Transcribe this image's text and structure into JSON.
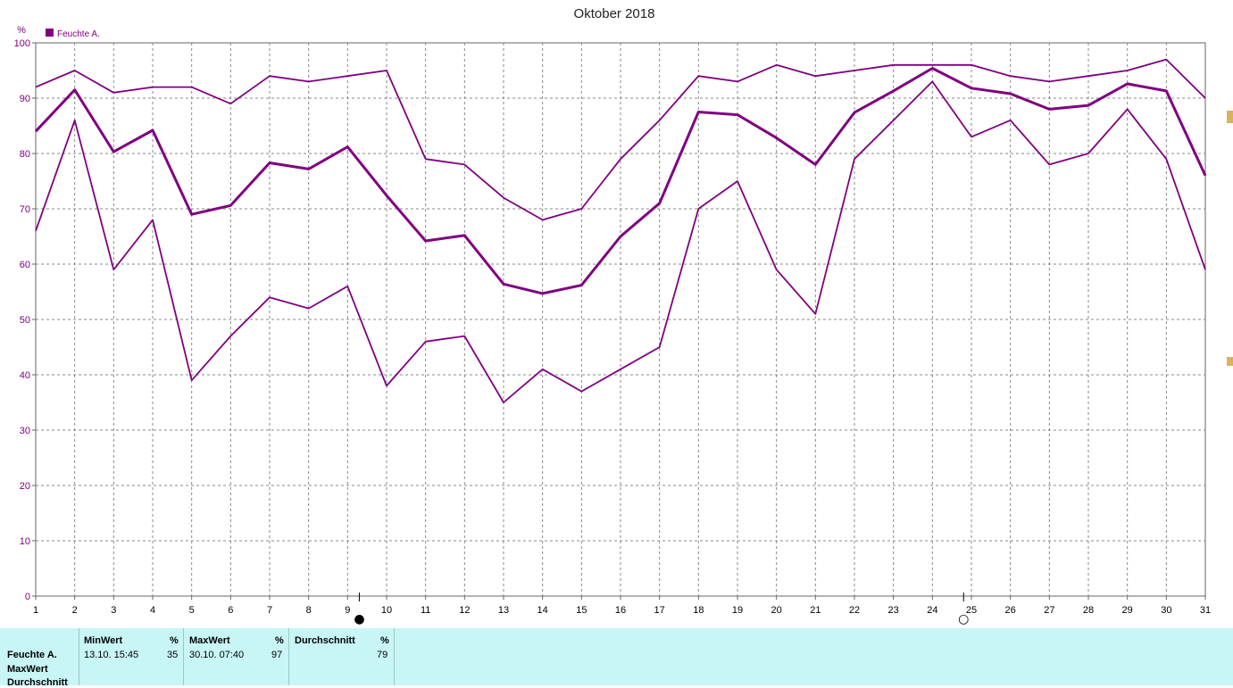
{
  "chart_data": {
    "type": "line",
    "title": "Oktober 2018",
    "ylabel": "%",
    "legend": "Feuchte A.",
    "legend_position": "top-left",
    "color": "#800080",
    "grid": true,
    "ylim": [
      0,
      100
    ],
    "yticks": [
      0,
      10,
      20,
      30,
      40,
      50,
      60,
      70,
      80,
      90,
      100
    ],
    "x": [
      1,
      2,
      3,
      4,
      5,
      6,
      7,
      8,
      9,
      10,
      11,
      12,
      13,
      14,
      15,
      16,
      17,
      18,
      19,
      20,
      21,
      22,
      23,
      24,
      25,
      26,
      27,
      28,
      29,
      30,
      31
    ],
    "series": [
      {
        "role": "max",
        "values": [
          92,
          95,
          91,
          92,
          92,
          89,
          94,
          93,
          94,
          95,
          79,
          78,
          72,
          68,
          70,
          79,
          86,
          94,
          93,
          96,
          94,
          95,
          96,
          96,
          96,
          94,
          93,
          94,
          95,
          97,
          90
        ]
      },
      {
        "role": "mean",
        "values": [
          84,
          91.5,
          80.3,
          84.2,
          69,
          70.6,
          78.3,
          77.2,
          81.2,
          72.4,
          64.2,
          65.2,
          56.4,
          54.7,
          56.2,
          65,
          71,
          87.5,
          87,
          82.8,
          78,
          87.4,
          91.3,
          95.4,
          91.8,
          90.8,
          88,
          88.7,
          92.6,
          91.3,
          76
        ]
      },
      {
        "role": "min",
        "values": [
          66,
          86,
          59,
          68,
          39,
          47,
          54,
          52,
          56,
          38,
          46,
          47,
          35,
          41,
          37,
          41,
          45,
          70,
          75,
          59,
          51,
          79,
          86,
          93,
          83,
          86,
          78,
          80,
          88,
          79,
          59
        ]
      }
    ],
    "moon_markers": [
      {
        "phase": "new",
        "symbol": "●",
        "x": 9.3
      },
      {
        "phase": "full",
        "symbol": "○",
        "x": 24.8
      }
    ]
  },
  "stats": {
    "series_name": "Feuchte A.",
    "row_labels": [
      "Feuchte A.",
      "MaxWert",
      "Durchschnitt"
    ],
    "min": {
      "header": "MinWert",
      "unit": "%",
      "time": "13.10.  15:45",
      "value": "35"
    },
    "max": {
      "header": "MaxWert",
      "unit": "%",
      "time": "30.10.  07:40",
      "value": "97"
    },
    "avg": {
      "header": "Durchschnitt",
      "unit": "%",
      "value": "79"
    }
  }
}
